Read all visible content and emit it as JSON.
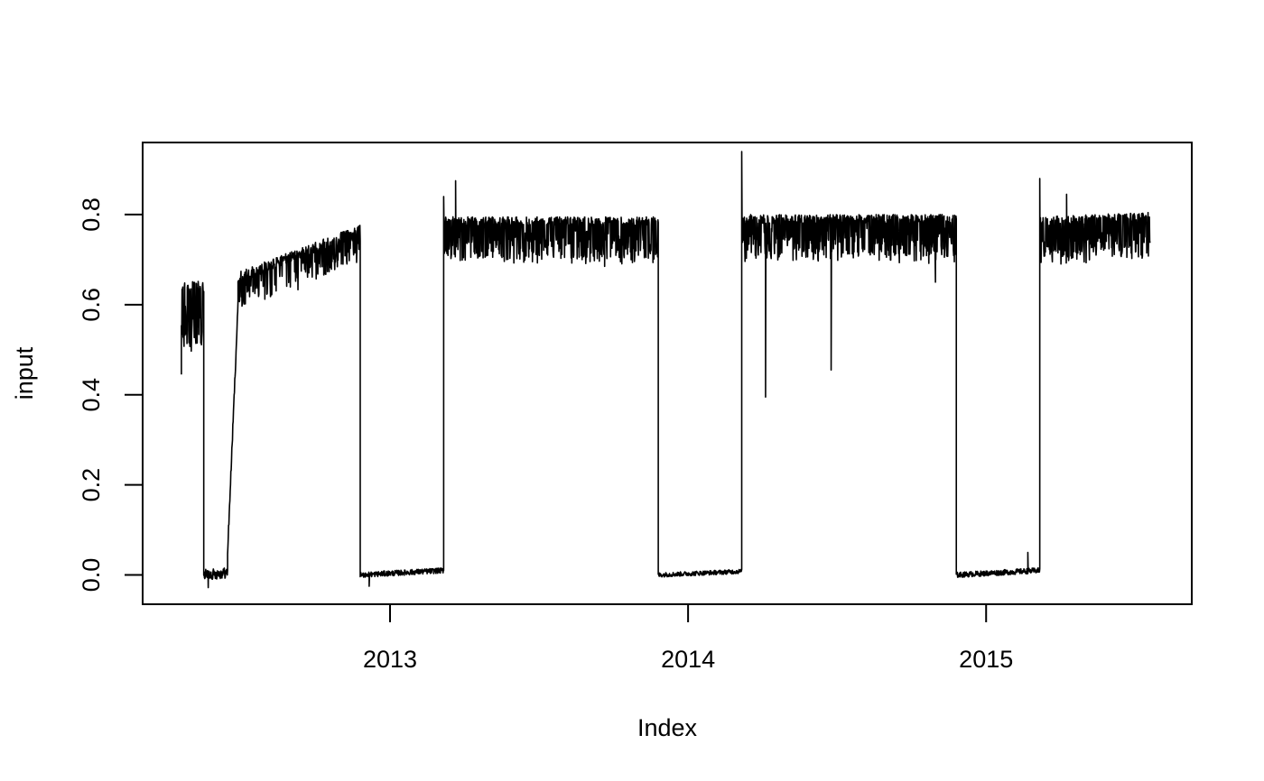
{
  "chart_data": {
    "type": "line",
    "xlabel": "Index",
    "ylabel": "input",
    "xlim": [
      2012.17,
      2015.69
    ],
    "ylim": [
      -0.065,
      0.96
    ],
    "x_ticks": [
      {
        "value": 2013,
        "label": "2013"
      },
      {
        "value": 2014,
        "label": "2014"
      },
      {
        "value": 2015,
        "label": "2015"
      }
    ],
    "y_ticks": [
      {
        "value": 0.0,
        "label": "0.0"
      },
      {
        "value": 0.2,
        "label": "0.2"
      },
      {
        "value": 0.4,
        "label": "0.4"
      },
      {
        "value": 0.6,
        "label": "0.6"
      },
      {
        "value": 0.8,
        "label": "0.8"
      }
    ],
    "series": [
      {
        "color": "#000000",
        "segments": [
          {
            "x": [
              2012.3,
              2012.375
            ],
            "baseline": 0.64,
            "trend": 0.0,
            "noise": 0.012,
            "dip_prob": 0.65,
            "dip_depth": 0.14,
            "start_value": 0.445
          },
          {
            "x": [
              2012.375,
              2012.455
            ],
            "baseline": 0.0,
            "trend": 0.005,
            "noise": 0.012,
            "dip_prob": 0.0,
            "dip_depth": 0.0
          },
          {
            "x": [
              2012.455,
              2012.49
            ],
            "baseline": 0.05,
            "trend": 0.55,
            "noise": 0.01,
            "dip_prob": 0.0,
            "dip_depth": 0.0
          },
          {
            "x": [
              2012.49,
              2012.9
            ],
            "baseline": 0.66,
            "trend": 0.105,
            "noise": 0.012,
            "dip_prob": 0.35,
            "dip_depth": 0.07
          },
          {
            "x": [
              2012.9,
              2013.18
            ],
            "baseline": 0.0,
            "trend": 0.01,
            "noise": 0.006,
            "dip_prob": 0.0,
            "dip_depth": 0.0
          },
          {
            "x": [
              2013.18,
              2013.9
            ],
            "baseline": 0.785,
            "trend": 0.0,
            "noise": 0.01,
            "dip_prob": 0.45,
            "dip_depth": 0.09
          },
          {
            "x": [
              2013.9,
              2014.18
            ],
            "baseline": 0.0,
            "trend": 0.008,
            "noise": 0.005,
            "dip_prob": 0.0,
            "dip_depth": 0.0
          },
          {
            "x": [
              2014.18,
              2014.9
            ],
            "baseline": 0.79,
            "trend": 0.0,
            "noise": 0.01,
            "dip_prob": 0.45,
            "dip_depth": 0.09
          },
          {
            "x": [
              2014.9,
              2015.18
            ],
            "baseline": 0.0,
            "trend": 0.01,
            "noise": 0.006,
            "dip_prob": 0.0,
            "dip_depth": 0.0
          },
          {
            "x": [
              2015.18,
              2015.55
            ],
            "baseline": 0.785,
            "trend": 0.01,
            "noise": 0.01,
            "dip_prob": 0.5,
            "dip_depth": 0.09
          }
        ],
        "spikes": [
          {
            "x": 2013.18,
            "y": 0.84
          },
          {
            "x": 2013.22,
            "y": 0.875
          },
          {
            "x": 2014.18,
            "y": 0.94
          },
          {
            "x": 2014.26,
            "y": 0.395
          },
          {
            "x": 2014.48,
            "y": 0.455
          },
          {
            "x": 2015.18,
            "y": 0.88
          },
          {
            "x": 2015.27,
            "y": 0.845
          },
          {
            "x": 2015.14,
            "y": 0.05
          },
          {
            "x": 2012.93,
            "y": -0.025
          },
          {
            "x": 2012.39,
            "y": -0.028
          },
          {
            "x": 2014.83,
            "y": 0.65
          },
          {
            "x": 2013.72,
            "y": 0.685
          }
        ]
      }
    ]
  }
}
